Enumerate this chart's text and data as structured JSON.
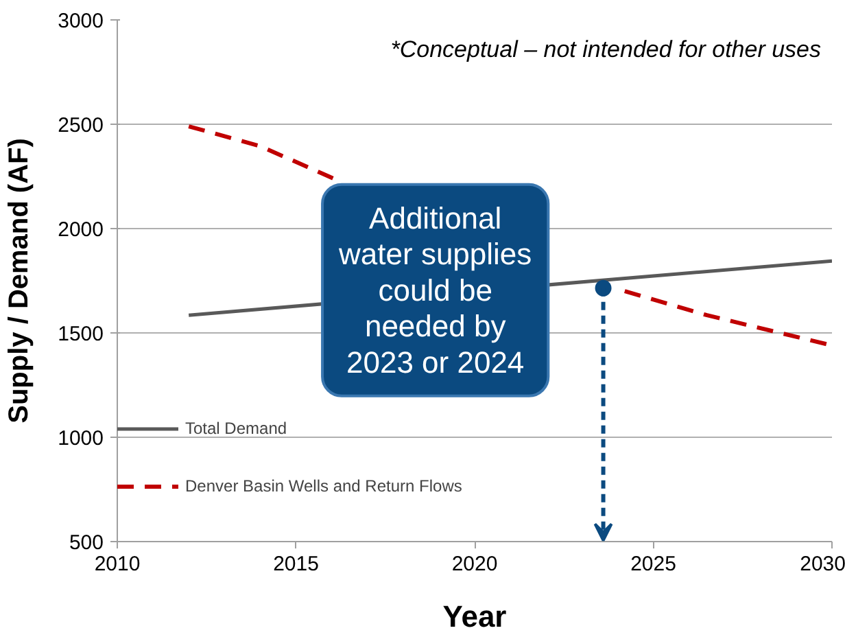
{
  "chart_data": {
    "type": "line",
    "xlabel": "Year",
    "ylabel": "Supply / Demand (AF)",
    "xlim": [
      2010,
      2030
    ],
    "ylim": [
      500,
      3000
    ],
    "xticks": [
      2010,
      2015,
      2020,
      2025,
      2030
    ],
    "yticks": [
      500,
      1000,
      1500,
      2000,
      2500,
      3000
    ],
    "grid": "y",
    "legend": "bottom left",
    "marker": "none",
    "series": [
      {
        "name": "Total Demand",
        "color": "#595959",
        "line_style": "solid",
        "x": [
          2012,
          2030
        ],
        "values": [
          1585,
          1845
        ]
      },
      {
        "name": "Denver Basin Wells and Return Flows",
        "color": "#c00000",
        "line_style": "dashed",
        "x": [
          2012,
          2014,
          2016.25,
          2020,
          2024.2,
          2026.5,
          2030
        ],
        "values": [
          2490,
          2395,
          2225,
          null,
          1700,
          1585,
          1440
        ]
      }
    ],
    "annotations": [
      "*Conceptual – not intended for other uses",
      {
        "text": "Additional\nwater supplies\ncould be\nneeded by\n2023 or 2024",
        "x": 2023.6,
        "y": 1715
      }
    ]
  }
}
